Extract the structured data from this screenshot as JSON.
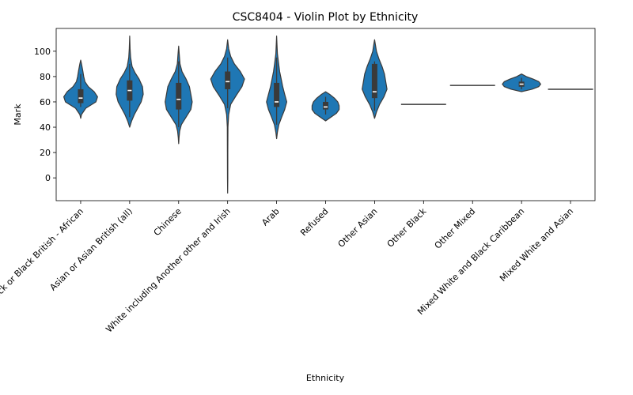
{
  "chart_data": {
    "type": "violin",
    "title": "CSC8404 - Violin Plot by Ethnicity",
    "xlabel": "Ethnicity",
    "ylabel": "Mark",
    "ylim": [
      -18,
      118
    ],
    "yticks": [
      0,
      20,
      40,
      60,
      80,
      100
    ],
    "color": "#1f77b4",
    "grid": false,
    "categories": [
      "Black or Black British - African",
      "Asian or Asian British (all)",
      "Chinese",
      "White including Another other and Irish",
      "Arab",
      "Refused",
      "Other Asian",
      "Other Black",
      "Other Mixed",
      "Mixed White and Black Caribbean",
      "Mixed White and Asian"
    ],
    "violins": [
      {
        "min": 47,
        "max": 93,
        "q1": 59,
        "median": 63,
        "q3": 70,
        "whisker_low": 56,
        "whisker_high": 82,
        "profile": [
          [
            47,
            0.0
          ],
          [
            50,
            0.05
          ],
          [
            55,
            0.3
          ],
          [
            60,
            0.9
          ],
          [
            64,
            1.0
          ],
          [
            68,
            0.8
          ],
          [
            72,
            0.45
          ],
          [
            76,
            0.25
          ],
          [
            80,
            0.18
          ],
          [
            85,
            0.12
          ],
          [
            90,
            0.05
          ],
          [
            93,
            0.0
          ]
        ],
        "scale": 0.75
      },
      {
        "min": 40,
        "max": 112,
        "q1": 61,
        "median": 69,
        "q3": 77,
        "whisker_low": 48,
        "whisker_high": 90,
        "profile": [
          [
            40,
            0.0
          ],
          [
            45,
            0.15
          ],
          [
            50,
            0.35
          ],
          [
            55,
            0.6
          ],
          [
            60,
            0.85
          ],
          [
            66,
            1.0
          ],
          [
            72,
            0.95
          ],
          [
            78,
            0.7
          ],
          [
            83,
            0.4
          ],
          [
            88,
            0.18
          ],
          [
            95,
            0.07
          ],
          [
            102,
            0.03
          ],
          [
            112,
            0.0
          ]
        ],
        "scale": 0.6
      },
      {
        "min": 27,
        "max": 104,
        "q1": 54,
        "median": 62,
        "q3": 75,
        "whisker_low": 40,
        "whisker_high": 92,
        "profile": [
          [
            27,
            0.0
          ],
          [
            32,
            0.03
          ],
          [
            37,
            0.08
          ],
          [
            42,
            0.2
          ],
          [
            48,
            0.55
          ],
          [
            54,
            0.9
          ],
          [
            60,
            1.0
          ],
          [
            66,
            0.9
          ],
          [
            72,
            0.8
          ],
          [
            78,
            0.55
          ],
          [
            84,
            0.25
          ],
          [
            90,
            0.1
          ],
          [
            97,
            0.05
          ],
          [
            104,
            0.0
          ]
        ],
        "scale": 0.6
      },
      {
        "min": -12,
        "max": 109,
        "q1": 70,
        "median": 76,
        "q3": 84,
        "whisker_low": 55,
        "whisker_high": 95,
        "profile": [
          [
            -12,
            0.0
          ],
          [
            0,
            0.008
          ],
          [
            20,
            0.012
          ],
          [
            40,
            0.02
          ],
          [
            50,
            0.06
          ],
          [
            58,
            0.18
          ],
          [
            65,
            0.5
          ],
          [
            72,
            0.85
          ],
          [
            78,
            1.0
          ],
          [
            84,
            0.75
          ],
          [
            90,
            0.4
          ],
          [
            96,
            0.18
          ],
          [
            102,
            0.06
          ],
          [
            109,
            0.0
          ]
        ],
        "scale": 0.75
      },
      {
        "min": 31,
        "max": 112,
        "q1": 56,
        "median": 60,
        "q3": 75,
        "whisker_low": 42,
        "whisker_high": 95,
        "profile": [
          [
            31,
            0.0
          ],
          [
            36,
            0.08
          ],
          [
            42,
            0.22
          ],
          [
            48,
            0.5
          ],
          [
            54,
            0.8
          ],
          [
            60,
            1.0
          ],
          [
            66,
            0.8
          ],
          [
            72,
            0.6
          ],
          [
            78,
            0.45
          ],
          [
            84,
            0.3
          ],
          [
            90,
            0.2
          ],
          [
            98,
            0.08
          ],
          [
            106,
            0.03
          ],
          [
            112,
            0.0
          ]
        ],
        "scale": 0.45
      },
      {
        "min": 45,
        "max": 68,
        "q1": 54,
        "median": 56,
        "q3": 60,
        "whisker_low": 50,
        "whisker_high": 64,
        "profile": [
          [
            45,
            0.0
          ],
          [
            48,
            0.4
          ],
          [
            51,
            0.8
          ],
          [
            54,
            1.0
          ],
          [
            57,
            1.0
          ],
          [
            60,
            0.9
          ],
          [
            63,
            0.65
          ],
          [
            66,
            0.3
          ],
          [
            68,
            0.0
          ]
        ],
        "scale": 0.6
      },
      {
        "min": 47,
        "max": 109,
        "q1": 63,
        "median": 68,
        "q3": 90,
        "whisker_low": 53,
        "whisker_high": 92,
        "profile": [
          [
            47,
            0.0
          ],
          [
            52,
            0.15
          ],
          [
            58,
            0.4
          ],
          [
            64,
            0.75
          ],
          [
            70,
            1.0
          ],
          [
            76,
            0.9
          ],
          [
            82,
            0.8
          ],
          [
            88,
            0.6
          ],
          [
            94,
            0.35
          ],
          [
            100,
            0.15
          ],
          [
            106,
            0.05
          ],
          [
            109,
            0.0
          ]
        ],
        "scale": 0.55
      },
      {
        "line": 58
      },
      {
        "line": 73
      },
      {
        "min": 68,
        "max": 82,
        "q1": 72,
        "median": 74,
        "q3": 76,
        "whisker_low": 70,
        "whisker_high": 79,
        "profile": [
          [
            68,
            0.0
          ],
          [
            70,
            0.55
          ],
          [
            72,
            0.9
          ],
          [
            74,
            1.0
          ],
          [
            76,
            0.9
          ],
          [
            78,
            0.6
          ],
          [
            80,
            0.25
          ],
          [
            82,
            0.0
          ]
        ],
        "scale": 0.85
      },
      {
        "line": 70
      }
    ]
  }
}
